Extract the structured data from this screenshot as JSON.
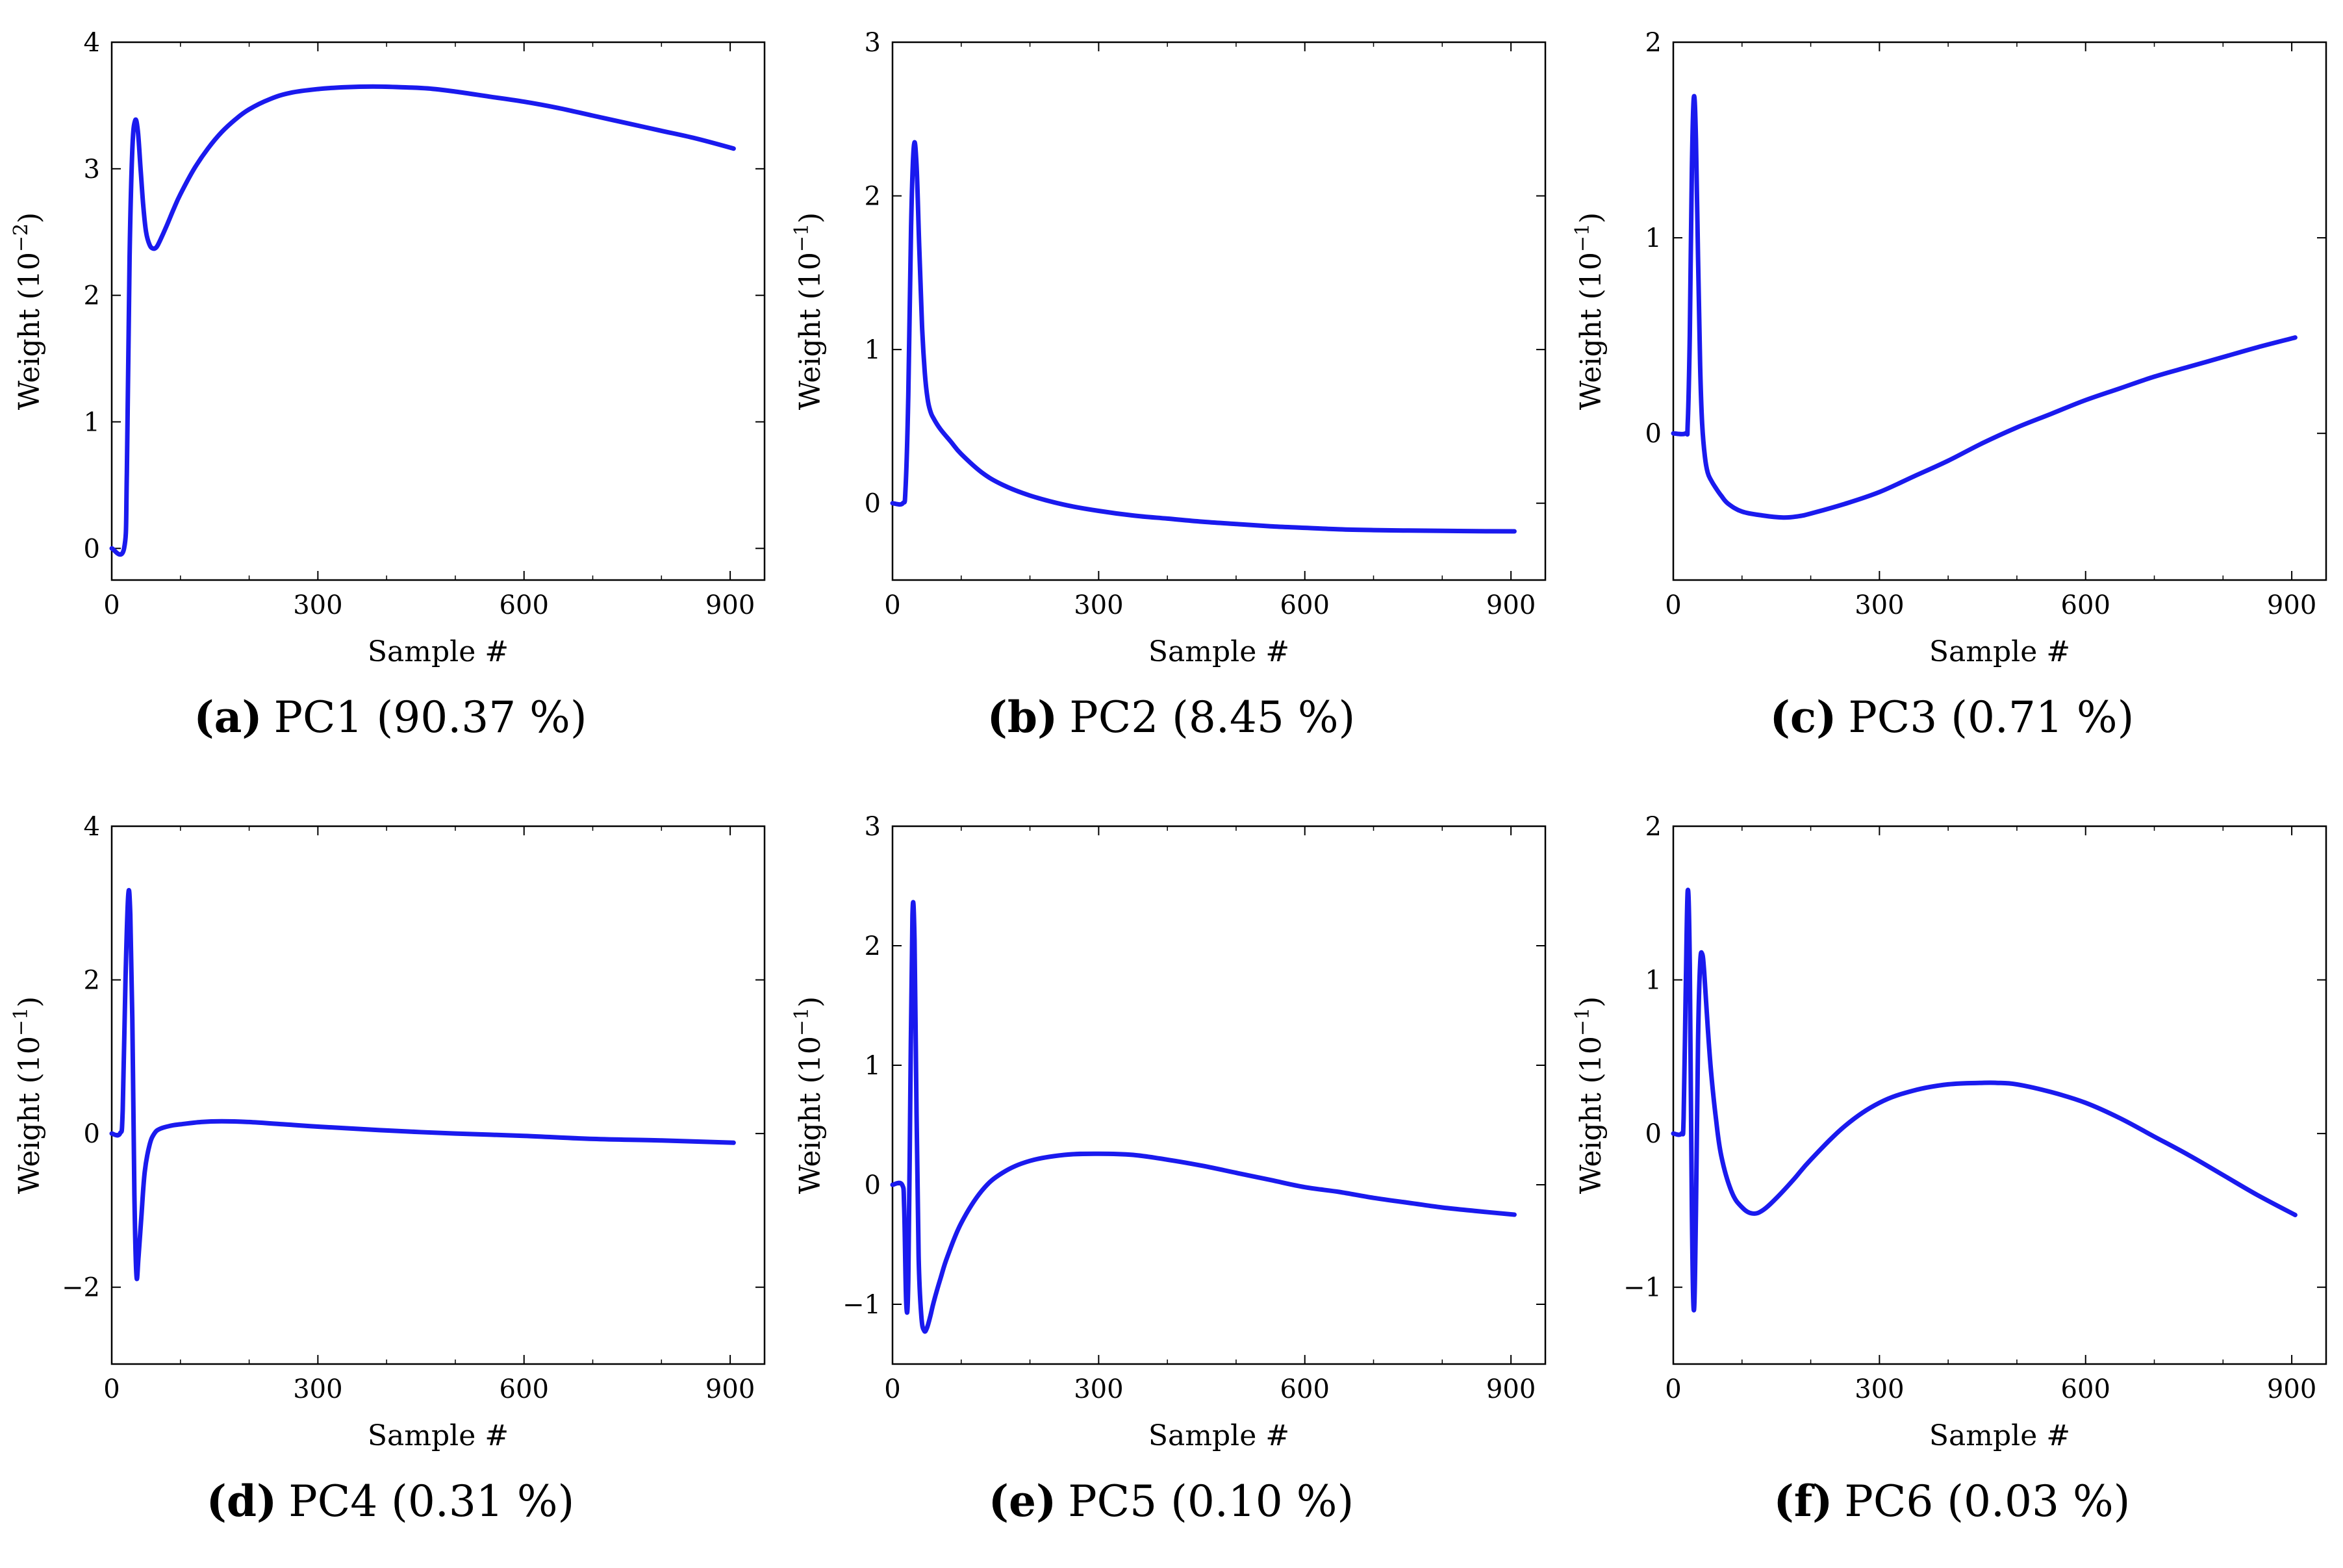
{
  "figure": {
    "charts": [
      {
        "id": "a",
        "caption_letter": "(a)",
        "caption_text": "PC1 (90.37 %)",
        "xlabel": "Sample #",
        "ylabel_prefix": "Weight (10",
        "ylabel_exp": "−2",
        "ylabel_suffix": ")",
        "xlim": [
          0,
          950
        ],
        "ylim": [
          -0.25,
          4
        ],
        "xticks": [
          0,
          300,
          600,
          900
        ],
        "xtick_labels": [
          "0",
          "300",
          "600",
          "900"
        ],
        "yticks": [
          0,
          1,
          2,
          3,
          4
        ],
        "ytick_labels": [
          "0",
          "1",
          "2",
          "3",
          "4"
        ],
        "line_color": "#1a1aee"
      },
      {
        "id": "b",
        "caption_letter": "(b)",
        "caption_text": "PC2 (8.45 %)",
        "xlabel": "Sample #",
        "ylabel_prefix": "Weight (10",
        "ylabel_exp": "−1",
        "ylabel_suffix": ")",
        "xlim": [
          0,
          950
        ],
        "ylim": [
          -0.5,
          3
        ],
        "xticks": [
          0,
          300,
          600,
          900
        ],
        "xtick_labels": [
          "0",
          "300",
          "600",
          "900"
        ],
        "yticks": [
          0,
          1,
          2,
          3
        ],
        "ytick_labels": [
          "0",
          "1",
          "2",
          "3"
        ],
        "line_color": "#1a1aee"
      },
      {
        "id": "c",
        "caption_letter": "(c)",
        "caption_text": "PC3 (0.71 %)",
        "xlabel": "Sample #",
        "ylabel_prefix": "Weight (10",
        "ylabel_exp": "−1",
        "ylabel_suffix": ")",
        "xlim": [
          0,
          950
        ],
        "ylim": [
          -0.75,
          2
        ],
        "xticks": [
          0,
          300,
          600,
          900
        ],
        "xtick_labels": [
          "0",
          "300",
          "600",
          "900"
        ],
        "yticks": [
          0,
          1,
          2
        ],
        "ytick_labels": [
          "0",
          "1",
          "2"
        ],
        "line_color": "#1a1aee"
      },
      {
        "id": "d",
        "caption_letter": "(d)",
        "caption_text": "PC4 (0.31 %)",
        "xlabel": "Sample #",
        "ylabel_prefix": "Weight (10",
        "ylabel_exp": "−1",
        "ylabel_suffix": ")",
        "xlim": [
          0,
          950
        ],
        "ylim": [
          -3,
          4
        ],
        "xticks": [
          0,
          300,
          600,
          900
        ],
        "xtick_labels": [
          "0",
          "300",
          "600",
          "900"
        ],
        "yticks": [
          -2,
          0,
          2,
          4
        ],
        "ytick_labels": [
          "−2",
          "0",
          "2",
          "4"
        ],
        "line_color": "#1a1aee"
      },
      {
        "id": "e",
        "caption_letter": "(e)",
        "caption_text": "PC5 (0.10 %)",
        "xlabel": "Sample #",
        "ylabel_prefix": "Weight (10",
        "ylabel_exp": "−1",
        "ylabel_suffix": ")",
        "xlim": [
          0,
          950
        ],
        "ylim": [
          -1.5,
          3
        ],
        "xticks": [
          0,
          300,
          600,
          900
        ],
        "xtick_labels": [
          "0",
          "300",
          "600",
          "900"
        ],
        "yticks": [
          -1,
          0,
          1,
          2,
          3
        ],
        "ytick_labels": [
          "−1",
          "0",
          "1",
          "2",
          "3"
        ],
        "line_color": "#1a1aee"
      },
      {
        "id": "f",
        "caption_letter": "(f)",
        "caption_text": "PC6 (0.03 %)",
        "xlabel": "Sample #",
        "ylabel_prefix": "Weight (10",
        "ylabel_exp": "−1",
        "ylabel_suffix": ")",
        "xlim": [
          0,
          950
        ],
        "ylim": [
          -1.5,
          2
        ],
        "xticks": [
          0,
          300,
          600,
          900
        ],
        "xtick_labels": [
          "0",
          "300",
          "600",
          "900"
        ],
        "yticks": [
          -1,
          0,
          1,
          2
        ],
        "ytick_labels": [
          "−1",
          "0",
          "1",
          "2"
        ],
        "line_color": "#1a1aee"
      }
    ]
  },
  "chart_data": [
    {
      "type": "line",
      "title": "PC1 (90.37 %)",
      "xlabel": "Sample #",
      "ylabel": "Weight (10−2)",
      "xlim": [
        0,
        950
      ],
      "ylim": [
        -0.25,
        4
      ],
      "series": [
        {
          "name": "PC1",
          "x": [
            0,
            18,
            22,
            26,
            30,
            34,
            38,
            42,
            46,
            50,
            55,
            60,
            65,
            70,
            80,
            90,
            100,
            120,
            140,
            160,
            180,
            200,
            230,
            260,
            300,
            340,
            380,
            420,
            460,
            500,
            550,
            600,
            650,
            700,
            750,
            800,
            850,
            905
          ],
          "y": [
            0,
            0,
            0.6,
            2.3,
            3.15,
            3.38,
            3.3,
            3.0,
            2.7,
            2.5,
            2.4,
            2.37,
            2.38,
            2.43,
            2.55,
            2.68,
            2.8,
            3.0,
            3.16,
            3.29,
            3.39,
            3.47,
            3.55,
            3.6,
            3.63,
            3.645,
            3.65,
            3.645,
            3.635,
            3.61,
            3.57,
            3.53,
            3.48,
            3.42,
            3.36,
            3.3,
            3.24,
            3.16
          ]
        }
      ]
    },
    {
      "type": "line",
      "title": "PC2 (8.45 %)",
      "xlabel": "Sample #",
      "ylabel": "Weight (10−1)",
      "xlim": [
        0,
        950
      ],
      "ylim": [
        -0.5,
        3
      ],
      "series": [
        {
          "name": "PC2",
          "x": [
            0,
            15,
            19,
            23,
            27,
            31,
            35,
            39,
            43,
            47,
            51,
            55,
            60,
            70,
            85,
            100,
            130,
            160,
            200,
            250,
            300,
            350,
            400,
            450,
            500,
            550,
            600,
            650,
            700,
            750,
            800,
            850,
            905
          ],
          "y": [
            0,
            0,
            0.1,
            0.7,
            1.8,
            2.32,
            2.2,
            1.65,
            1.15,
            0.85,
            0.68,
            0.6,
            0.55,
            0.48,
            0.4,
            0.32,
            0.2,
            0.12,
            0.05,
            -0.01,
            -0.05,
            -0.08,
            -0.1,
            -0.12,
            -0.135,
            -0.15,
            -0.16,
            -0.17,
            -0.175,
            -0.178,
            -0.18,
            -0.182,
            -0.183
          ]
        }
      ]
    },
    {
      "type": "line",
      "title": "PC3 (0.71 %)",
      "xlabel": "Sample #",
      "ylabel": "Weight (10−1)",
      "xlim": [
        0,
        950
      ],
      "ylim": [
        -0.75,
        2
      ],
      "series": [
        {
          "name": "PC3",
          "x": [
            0,
            18,
            21,
            24,
            27,
            30,
            33,
            36,
            39,
            42,
            46,
            50,
            55,
            62,
            70,
            80,
            100,
            130,
            160,
            180,
            200,
            250,
            300,
            350,
            400,
            450,
            500,
            550,
            600,
            650,
            700,
            750,
            800,
            850,
            905
          ],
          "y": [
            0,
            0,
            0.05,
            0.5,
            1.35,
            1.72,
            1.5,
            0.9,
            0.35,
            0.05,
            -0.12,
            -0.2,
            -0.24,
            -0.28,
            -0.32,
            -0.36,
            -0.4,
            -0.42,
            -0.43,
            -0.425,
            -0.41,
            -0.36,
            -0.3,
            -0.22,
            -0.14,
            -0.05,
            0.03,
            0.1,
            0.17,
            0.23,
            0.29,
            0.34,
            0.39,
            0.44,
            0.49
          ]
        }
      ]
    },
    {
      "type": "line",
      "title": "PC4 (0.31 %)",
      "xlabel": "Sample #",
      "ylabel": "Weight (10−1)",
      "xlim": [
        0,
        950
      ],
      "ylim": [
        -3,
        4
      ],
      "series": [
        {
          "name": "PC4",
          "x": [
            0,
            12,
            16,
            20,
            24,
            27,
            30,
            33,
            36,
            39,
            43,
            48,
            55,
            62,
            70,
            85,
            100,
            130,
            160,
            200,
            250,
            300,
            400,
            500,
            600,
            700,
            800,
            905
          ],
          "y": [
            0,
            0,
            0.3,
            2.0,
            3.1,
            2.85,
            1.5,
            -0.8,
            -1.85,
            -1.6,
            -1.1,
            -0.5,
            -0.15,
            0.0,
            0.06,
            0.1,
            0.12,
            0.15,
            0.16,
            0.15,
            0.12,
            0.09,
            0.04,
            0.0,
            -0.03,
            -0.07,
            -0.09,
            -0.12
          ]
        }
      ]
    },
    {
      "type": "line",
      "title": "PC5 (0.10 %)",
      "xlabel": "Sample #",
      "ylabel": "Weight (10−1)",
      "xlim": [
        0,
        950
      ],
      "ylim": [
        -1.5,
        3
      ],
      "series": [
        {
          "name": "PC5",
          "x": [
            0,
            14,
            17,
            20,
            23,
            26,
            29,
            32,
            35,
            38,
            42,
            46,
            50,
            55,
            60,
            70,
            80,
            100,
            130,
            160,
            200,
            250,
            300,
            350,
            400,
            450,
            500,
            550,
            600,
            650,
            700,
            750,
            800,
            850,
            905
          ],
          "y": [
            0,
            0,
            -0.2,
            -1.0,
            -0.8,
            0.8,
            2.25,
            2.05,
            0.6,
            -0.6,
            -1.1,
            -1.22,
            -1.2,
            -1.1,
            -0.98,
            -0.78,
            -0.6,
            -0.32,
            -0.05,
            0.1,
            0.2,
            0.25,
            0.26,
            0.25,
            0.21,
            0.16,
            0.1,
            0.04,
            -0.02,
            -0.06,
            -0.11,
            -0.15,
            -0.19,
            -0.22,
            -0.25
          ]
        }
      ]
    },
    {
      "type": "line",
      "title": "PC6 (0.03 %)",
      "xlabel": "Sample #",
      "ylabel": "Weight (10−1)",
      "xlim": [
        0,
        950
      ],
      "ylim": [
        -1.5,
        2
      ],
      "series": [
        {
          "name": "PC6",
          "x": [
            0,
            12,
            15,
            18,
            21,
            24,
            27,
            30,
            33,
            36,
            39,
            42,
            45,
            50,
            55,
            62,
            70,
            85,
            100,
            115,
            130,
            150,
            175,
            200,
            250,
            300,
            350,
            400,
            450,
            470,
            500,
            550,
            600,
            650,
            700,
            750,
            800,
            850,
            905
          ],
          "y": [
            0,
            0,
            0.1,
            0.9,
            1.58,
            1.1,
            -0.5,
            -1.15,
            -0.5,
            0.6,
            1.1,
            1.17,
            1.05,
            0.7,
            0.4,
            0.1,
            -0.15,
            -0.38,
            -0.48,
            -0.52,
            -0.5,
            -0.42,
            -0.3,
            -0.17,
            0.05,
            0.2,
            0.28,
            0.32,
            0.33,
            0.33,
            0.32,
            0.27,
            0.2,
            0.1,
            -0.02,
            -0.14,
            -0.27,
            -0.4,
            -0.53
          ]
        }
      ]
    }
  ]
}
